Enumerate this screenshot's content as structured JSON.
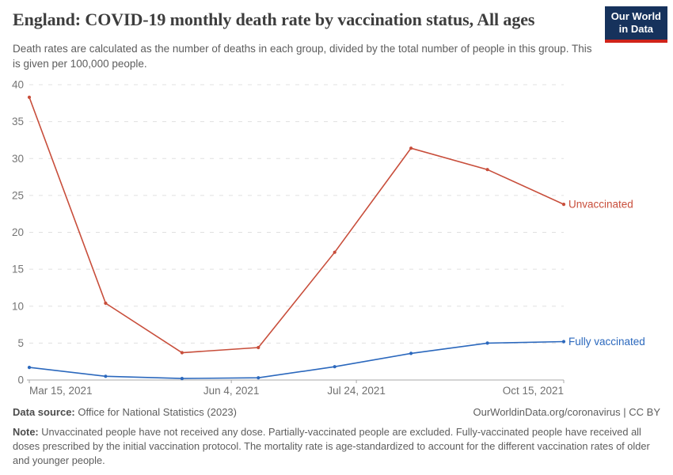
{
  "header": {
    "title": "England: COVID-19 monthly death rate by vaccination status, All ages",
    "subtitle": "Death rates are calculated as the number of deaths in each group, divided by the total number of people in this group. This is given per 100,000 people.",
    "logo": {
      "line1": "Our World",
      "line2": "in Data",
      "bg_color": "#16325c",
      "bar_color": "#d0231a",
      "text_color": "#ffffff"
    }
  },
  "chart_data": {
    "type": "line",
    "title": "England: COVID-19 monthly death rate by vaccination status, All ages",
    "unit": "deaths per 100,000 people",
    "ylim": [
      0,
      40
    ],
    "yticks": [
      0,
      5,
      10,
      15,
      20,
      25,
      30,
      35,
      40
    ],
    "grid": "horizontal-dashed",
    "legend_position": "line-end-labels",
    "x_range": [
      "Mar 15, 2021",
      "Oct 15, 2021"
    ],
    "x_ticks": [
      {
        "label": "Mar 15, 2021",
        "frac": 0.0,
        "align": "start"
      },
      {
        "label": "Jun 4, 2021",
        "frac": 0.378,
        "align": "middle"
      },
      {
        "label": "Jul 24, 2021",
        "frac": 0.612,
        "align": "middle"
      },
      {
        "label": "Oct 15, 2021",
        "frac": 1.0,
        "align": "end"
      }
    ],
    "series": [
      {
        "name": "Unvaccinated",
        "color": "#c84e3b",
        "values": [
          38.3,
          10.4,
          3.7,
          4.4,
          17.3,
          31.4,
          28.5,
          23.8
        ]
      },
      {
        "name": "Fully vaccinated",
        "color": "#2b68bd",
        "values": [
          1.7,
          0.5,
          0.2,
          0.3,
          1.8,
          3.6,
          5.0,
          5.2
        ]
      }
    ]
  },
  "footer": {
    "data_source_label": "Data source:",
    "data_source_value": " Office for National Statistics (2023)",
    "link_text": "OurWorldinData.org/coronavirus | CC BY",
    "note_label": "Note:",
    "note_text": " Unvaccinated people have not received any dose. Partially-vaccinated people are excluded. Fully-vaccinated people have received all doses prescribed by the initial vaccination protocol. The mortality rate is age-standardized to account for the different vaccination rates of older and younger people."
  }
}
